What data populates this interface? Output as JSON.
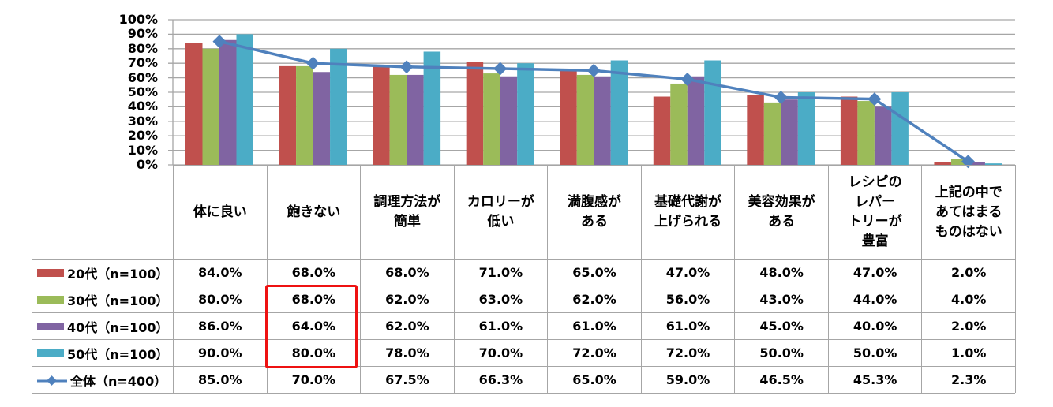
{
  "chart_data": {
    "type": "bar",
    "title": "",
    "xlabel": "",
    "ylabel": "",
    "ylim": [
      0,
      100
    ],
    "yticks": [
      "0%",
      "10%",
      "20%",
      "30%",
      "40%",
      "50%",
      "60%",
      "70%",
      "80%",
      "90%",
      "100%"
    ],
    "grid": true,
    "legend": "table-left",
    "categories": [
      "体に良い",
      "飽きない",
      "調理方法が\n簡単",
      "カロリーが\n低い",
      "満腹感が\nある",
      "基礎代謝が\n上げられる",
      "美容効果が\nある",
      "レシピの\nレパー\nトリーが\n豊富",
      "上記の中で\nあてはまる\nものはない"
    ],
    "series": [
      {
        "name": "20代（n=100）",
        "type": "bar",
        "color": "#c0504d",
        "values": [
          84,
          68,
          68,
          71,
          65,
          47,
          48,
          47,
          2
        ],
        "labels": [
          "84.0%",
          "68.0%",
          "68.0%",
          "71.0%",
          "65.0%",
          "47.0%",
          "48.0%",
          "47.0%",
          "2.0%"
        ]
      },
      {
        "name": "30代（n=100）",
        "type": "bar",
        "color": "#9bbb59",
        "values": [
          80,
          68,
          62,
          63,
          62,
          56,
          43,
          44,
          4
        ],
        "labels": [
          "80.0%",
          "68.0%",
          "62.0%",
          "63.0%",
          "62.0%",
          "56.0%",
          "43.0%",
          "44.0%",
          "4.0%"
        ]
      },
      {
        "name": "40代（n=100）",
        "type": "bar",
        "color": "#8064a2",
        "values": [
          86,
          64,
          62,
          61,
          61,
          61,
          45,
          40,
          2
        ],
        "labels": [
          "86.0%",
          "64.0%",
          "62.0%",
          "61.0%",
          "61.0%",
          "61.0%",
          "45.0%",
          "40.0%",
          "2.0%"
        ]
      },
      {
        "name": "50代（n=100）",
        "type": "bar",
        "color": "#4bacc6",
        "values": [
          90,
          80,
          78,
          70,
          72,
          72,
          50,
          50,
          1
        ],
        "labels": [
          "90.0%",
          "80.0%",
          "78.0%",
          "70.0%",
          "72.0%",
          "72.0%",
          "50.0%",
          "50.0%",
          "1.0%"
        ]
      },
      {
        "name": "全体（n=400）",
        "type": "line",
        "color": "#4f81bd",
        "values": [
          85,
          70,
          67.5,
          66.3,
          65,
          59,
          46.5,
          45.3,
          2.3
        ],
        "labels": [
          "85.0%",
          "70.0%",
          "67.5%",
          "66.3%",
          "65.0%",
          "59.0%",
          "46.5%",
          "45.3%",
          "2.3%"
        ]
      }
    ],
    "annotations": [
      {
        "type": "highlight-box",
        "color": "#ee1111",
        "category": "飽きない",
        "series": [
          "30代（n=100）",
          "40代（n=100）",
          "50代（n=100）"
        ]
      }
    ]
  }
}
